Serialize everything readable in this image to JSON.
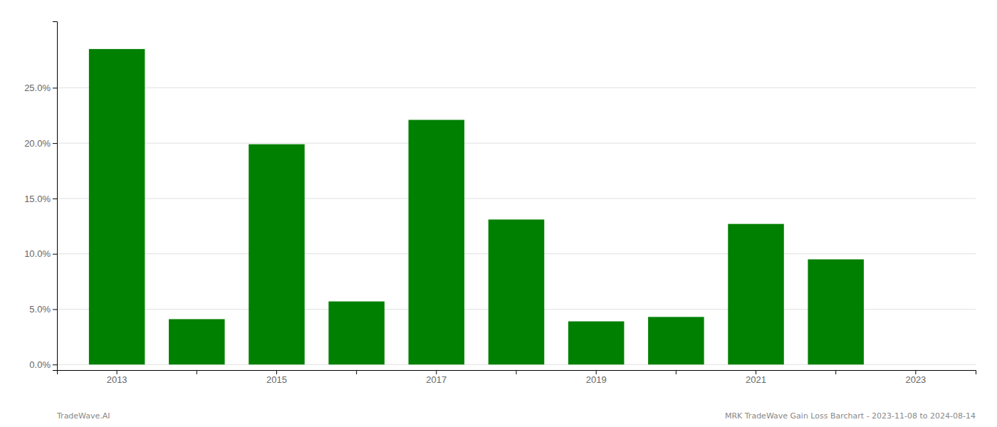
{
  "chart_data": {
    "type": "bar",
    "categories": [
      "2013",
      null,
      "2015",
      null,
      "2017",
      null,
      "2019",
      null,
      "2021",
      null,
      "2023"
    ],
    "values": [
      0.285,
      0.041,
      0.199,
      0.057,
      0.221,
      0.131,
      0.039,
      0.043,
      0.127,
      0.095,
      0.0
    ],
    "color": "#008000",
    "ylim": [
      -0.005,
      0.31
    ],
    "yticks": [
      {
        "value": 0.0,
        "label": "0.0%"
      },
      {
        "value": 0.05,
        "label": "5.0%"
      },
      {
        "value": 0.1,
        "label": "10.0%"
      },
      {
        "value": 0.15,
        "label": "15.0%"
      },
      {
        "value": 0.2,
        "label": "20.0%"
      },
      {
        "value": 0.25,
        "label": "25.0%"
      }
    ],
    "grid": true,
    "annotations": [
      "TradeWave.AI",
      "MRK TradeWave Gain Loss Barchart - 2023-11-08 to 2024-08-14"
    ]
  }
}
